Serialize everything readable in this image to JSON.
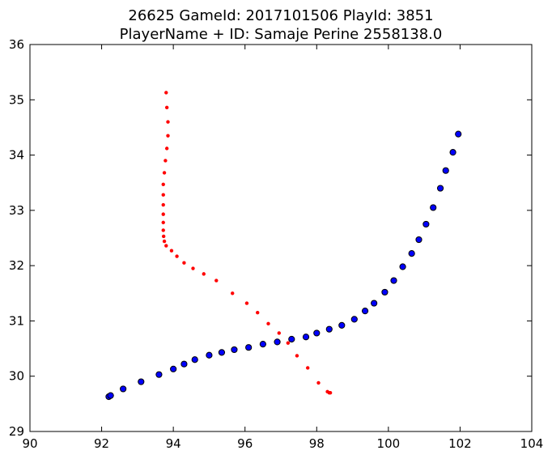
{
  "chart_data": {
    "type": "scatter",
    "title": "26625 GameId: 2017101506 PlayId: 3851",
    "subtitle": "PlayerName + ID: Samaje Perine 2558138.0",
    "xlabel": "",
    "ylabel": "",
    "xlim": [
      90,
      104
    ],
    "ylim": [
      29,
      36
    ],
    "xticks": [
      "90",
      "92",
      "94",
      "96",
      "98",
      "100",
      "102",
      "104"
    ],
    "yticks": [
      "29",
      "30",
      "31",
      "32",
      "33",
      "34",
      "35",
      "36"
    ],
    "grid": false,
    "series": [
      {
        "color": "#0000ff",
        "marker": "circle",
        "x": [
          92.2,
          92.25,
          92.6,
          93.1,
          93.6,
          94.0,
          94.3,
          94.6,
          95.0,
          95.35,
          95.7,
          96.1,
          96.5,
          96.9,
          97.3,
          97.7,
          98.0,
          98.35,
          98.7,
          99.05,
          99.35,
          99.6,
          99.9,
          100.15,
          100.4,
          100.65,
          100.85,
          101.05,
          101.25,
          101.45,
          101.6,
          101.8,
          101.95
        ],
        "y": [
          29.63,
          29.65,
          29.77,
          29.9,
          30.03,
          30.13,
          30.22,
          30.3,
          30.38,
          30.43,
          30.48,
          30.52,
          30.58,
          30.62,
          30.67,
          30.71,
          30.78,
          30.85,
          30.92,
          31.03,
          31.18,
          31.32,
          31.52,
          31.73,
          31.98,
          32.22,
          32.47,
          32.75,
          33.05,
          33.4,
          33.72,
          34.05,
          34.38
        ]
      },
      {
        "color": "#ff0000",
        "marker": "dot",
        "x": [
          93.8,
          93.82,
          93.85,
          93.85,
          93.82,
          93.78,
          93.75,
          93.72,
          93.72,
          93.72,
          93.72,
          93.72,
          93.72,
          93.73,
          93.75,
          93.8,
          93.95,
          94.1,
          94.3,
          94.55,
          94.85,
          95.2,
          95.65,
          96.05,
          96.35,
          96.65,
          96.95,
          97.2,
          97.45,
          97.75,
          98.05,
          98.3,
          98.35,
          98.38
        ],
        "y": [
          35.13,
          34.86,
          34.6,
          34.35,
          34.12,
          33.9,
          33.68,
          33.47,
          33.28,
          33.1,
          32.93,
          32.78,
          32.64,
          32.53,
          32.44,
          32.36,
          32.27,
          32.17,
          32.05,
          31.95,
          31.85,
          31.73,
          31.5,
          31.32,
          31.15,
          30.95,
          30.78,
          30.6,
          30.37,
          30.15,
          29.88,
          29.72,
          29.7,
          29.7
        ]
      }
    ]
  }
}
